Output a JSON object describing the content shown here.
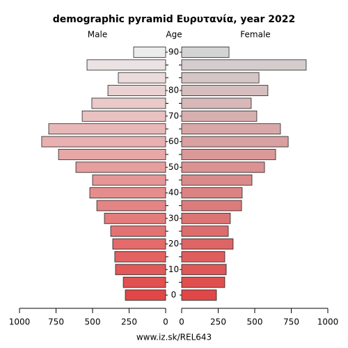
{
  "chart_data": {
    "type": "pyramid",
    "title": "demographic pyramid Ευρυτανία, year 2022",
    "y_label": "Age",
    "footer": "www.iz.sk/REL643",
    "categories": [
      "0",
      null,
      "10",
      null,
      "20",
      null,
      "30",
      null,
      "40",
      null,
      "50",
      null,
      "60",
      null,
      "70",
      null,
      "80",
      null,
      null,
      "90"
    ],
    "series": [
      {
        "name": "Male",
        "colors": [
          "#e04848",
          "#ececec"
        ],
        "values": [
          276,
          290,
          343,
          348,
          362,
          376,
          419,
          471,
          519,
          500,
          614,
          733,
          848,
          800,
          571,
          505,
          395,
          324,
          538,
          219
        ]
      },
      {
        "name": "Female",
        "colors": [
          "#e04848",
          "#d4d4d4"
        ],
        "values": [
          238,
          295,
          305,
          295,
          352,
          319,
          333,
          410,
          414,
          481,
          567,
          643,
          729,
          676,
          514,
          476,
          590,
          529,
          852,
          324
        ]
      }
    ],
    "xlim": [
      0,
      1000
    ],
    "xticks": [
      0,
      250,
      500,
      750,
      1000
    ]
  }
}
